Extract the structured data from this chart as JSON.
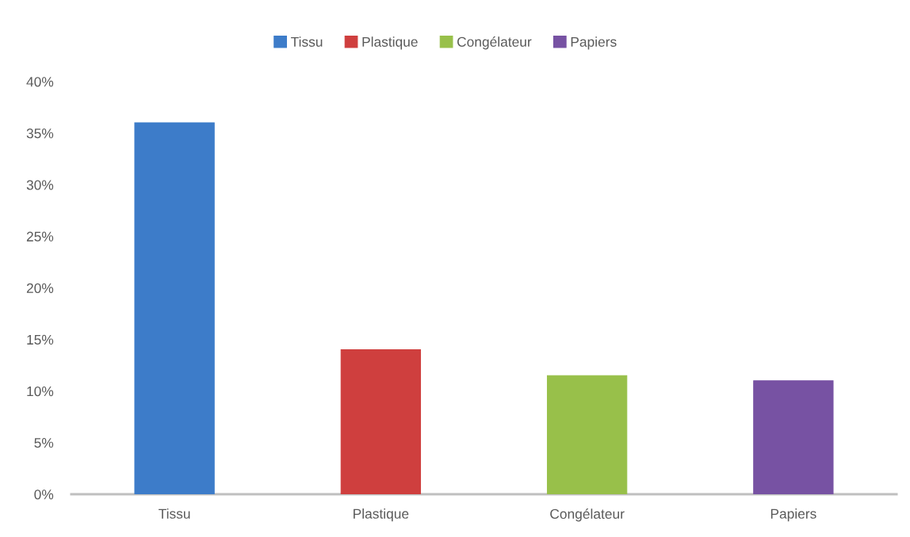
{
  "chart_data": {
    "type": "bar",
    "categories": [
      "Tissu",
      "Plastique",
      "Congélateur",
      "Papiers"
    ],
    "series": [
      {
        "name": "Tissu",
        "color": "#3d7cc9",
        "values": [
          36,
          null,
          null,
          null
        ]
      },
      {
        "name": "Plastique",
        "color": "#cf3f3e",
        "values": [
          null,
          14,
          null,
          null
        ]
      },
      {
        "name": "Congélateur",
        "color": "#98c04a",
        "values": [
          null,
          null,
          11.5,
          null
        ]
      },
      {
        "name": "Papiers",
        "color": "#7752a3",
        "values": [
          null,
          null,
          null,
          11
        ]
      }
    ],
    "ylim": [
      0,
      40
    ],
    "yticks": [
      {
        "value": 0,
        "label": "0%"
      },
      {
        "value": 5,
        "label": "5%"
      },
      {
        "value": 10,
        "label": "10%"
      },
      {
        "value": 15,
        "label": "15%"
      },
      {
        "value": 20,
        "label": "20%"
      },
      {
        "value": 25,
        "label": "25%"
      },
      {
        "value": 30,
        "label": "30%"
      },
      {
        "value": 35,
        "label": "35%"
      },
      {
        "value": 40,
        "label": "40%"
      }
    ],
    "legend": "top"
  }
}
